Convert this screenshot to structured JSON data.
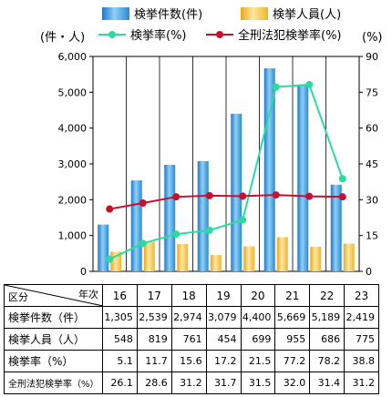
{
  "chart_data": {
    "type": "bar+line",
    "categories": [
      "16",
      "17",
      "18",
      "19",
      "20",
      "21",
      "22",
      "23"
    ],
    "left_axis": {
      "unit": "(件・人)",
      "min": 0,
      "max": 6000,
      "ticks": [
        "0",
        "1,000",
        "2,000",
        "3,000",
        "4,000",
        "5,000",
        "6,000"
      ]
    },
    "right_axis": {
      "unit": "(%)",
      "min": 0,
      "max": 90,
      "ticks": [
        "0",
        "15",
        "30",
        "45",
        "60",
        "75",
        "90"
      ]
    },
    "bar_series": [
      {
        "name": "検挙件数(件)",
        "axis": "left",
        "color": "#2f95d6",
        "values": [
          1305,
          2539,
          2974,
          3079,
          4400,
          5669,
          5189,
          2419
        ]
      },
      {
        "name": "検挙人員(人)",
        "axis": "left",
        "color": "#f0b92e",
        "values": [
          548,
          819,
          761,
          454,
          699,
          955,
          686,
          775
        ]
      }
    ],
    "line_series": [
      {
        "name": "検挙率(%)",
        "axis": "right",
        "color": "#2bdc9c",
        "values": [
          5.1,
          11.7,
          15.6,
          17.2,
          21.5,
          77.2,
          78.2,
          38.8
        ]
      },
      {
        "name": "全刑法犯検挙率(%)",
        "axis": "right",
        "color": "#c8102e",
        "values": [
          26.1,
          28.6,
          31.2,
          31.7,
          31.5,
          32.0,
          31.4,
          31.2
        ]
      }
    ],
    "grid": "vertical-category-lines"
  },
  "table": {
    "corner_left": "区分",
    "corner_right": "年次",
    "years": [
      "16",
      "17",
      "18",
      "19",
      "20",
      "21",
      "22",
      "23"
    ],
    "rows": [
      {
        "label": "検挙件数（件）",
        "values": [
          "1,305",
          "2,539",
          "2,974",
          "3,079",
          "4,400",
          "5,669",
          "5,189",
          "2,419"
        ]
      },
      {
        "label": "検挙人員（人）",
        "values": [
          "548",
          "819",
          "761",
          "454",
          "699",
          "955",
          "686",
          "775"
        ]
      },
      {
        "label": "検挙率（%）",
        "values": [
          "5.1",
          "11.7",
          "15.6",
          "17.2",
          "21.5",
          "77.2",
          "78.2",
          "38.8"
        ]
      },
      {
        "label": "全刑法犯検挙率（%）",
        "values": [
          "26.1",
          "28.6",
          "31.2",
          "31.7",
          "31.5",
          "32.0",
          "31.4",
          "31.2"
        ]
      }
    ]
  }
}
